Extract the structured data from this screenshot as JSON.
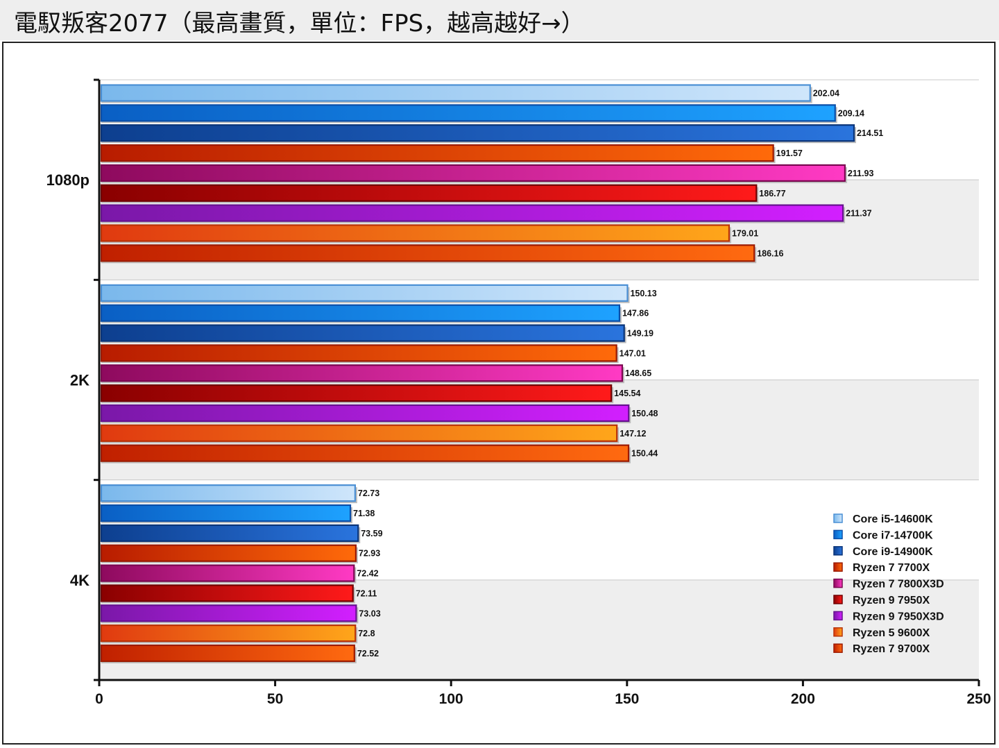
{
  "title": "電馭叛客2077（最高畫質，單位：FPS，越高越好→）",
  "chart_data": {
    "type": "bar",
    "orientation": "horizontal",
    "categories": [
      "1080p",
      "2K",
      "4K"
    ],
    "series": [
      {
        "name": "Core i5-14600K",
        "values": [
          202.04,
          150.13,
          72.73
        ],
        "color_start": "#7ab8ec",
        "color_end": "#cfe6fb",
        "border": "#4a8fd4"
      },
      {
        "name": "Core i7-14700K",
        "values": [
          209.14,
          147.86,
          71.38
        ],
        "color_start": "#0a5fc4",
        "color_end": "#1ea2ff",
        "border": "#0a4ea8"
      },
      {
        "name": "Core i9-14900K",
        "values": [
          214.51,
          149.19,
          73.59
        ],
        "color_start": "#0d3f8f",
        "color_end": "#2a74dd",
        "border": "#0a3478"
      },
      {
        "name": "Ryzen 7 7700X",
        "values": [
          191.57,
          147.01,
          72.93
        ],
        "color_start": "#b81c00",
        "color_end": "#ff6a0a",
        "border": "#9a1a00"
      },
      {
        "name": "Ryzen 7 7800X3D",
        "values": [
          211.93,
          148.65,
          72.42
        ],
        "color_start": "#8e0a5e",
        "color_end": "#ff3ac4",
        "border": "#7a0850"
      },
      {
        "name": "Ryzen 9 7950X",
        "values": [
          186.77,
          145.54,
          72.11
        ],
        "color_start": "#8a0000",
        "color_end": "#ff1a1a",
        "border": "#700000"
      },
      {
        "name": "Ryzen 9 7950X3D",
        "values": [
          211.37,
          150.48,
          73.03
        ],
        "color_start": "#7a18a8",
        "color_end": "#d21fff",
        "border": "#66128e"
      },
      {
        "name": "Ryzen 5 9600X",
        "values": [
          179.01,
          147.12,
          72.8
        ],
        "color_start": "#e03a10",
        "color_end": "#ffa61a",
        "border": "#b83208"
      },
      {
        "name": "Ryzen 7 9700X",
        "values": [
          186.16,
          150.44,
          72.52
        ],
        "color_start": "#c02000",
        "color_end": "#ff6a10",
        "border": "#9c1a00"
      }
    ],
    "xlim": [
      0,
      250
    ],
    "xticks": [
      "0",
      "50",
      "100",
      "150",
      "200",
      "250"
    ],
    "grid": true,
    "legend": "bottom-right"
  }
}
